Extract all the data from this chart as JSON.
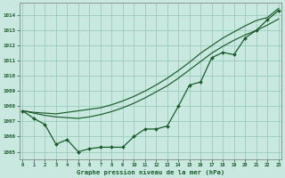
{
  "xlabel": "Graphe pression niveau de la mer (hPa)",
  "bg_color": "#c8e8e0",
  "grid_color": "#99ccbb",
  "line_color": "#1a5c2a",
  "x": [
    0,
    1,
    2,
    3,
    4,
    5,
    6,
    7,
    8,
    9,
    10,
    11,
    12,
    13,
    14,
    15,
    16,
    17,
    18,
    19,
    20,
    21,
    22,
    23
  ],
  "series_main": [
    1007.7,
    1007.2,
    1006.8,
    1005.5,
    1005.8,
    1005.0,
    1005.2,
    1005.3,
    1005.3,
    1005.3,
    1006.0,
    1006.5,
    1006.5,
    1006.7,
    1008.0,
    1009.4,
    1009.6,
    1011.2,
    1011.55,
    1011.4,
    1012.5,
    1013.0,
    1013.7,
    1014.3
  ],
  "series_upper": [
    1007.7,
    1007.6,
    1007.55,
    1007.5,
    1007.6,
    1007.7,
    1007.8,
    1007.9,
    1008.1,
    1008.35,
    1008.65,
    1009.0,
    1009.4,
    1009.85,
    1010.35,
    1010.9,
    1011.5,
    1012.0,
    1012.5,
    1012.9,
    1013.3,
    1013.65,
    1013.85,
    1014.45
  ],
  "series_mid": [
    1007.7,
    1007.55,
    1007.4,
    1007.3,
    1007.25,
    1007.2,
    1007.3,
    1007.45,
    1007.65,
    1007.9,
    1008.2,
    1008.55,
    1008.95,
    1009.35,
    1009.85,
    1010.4,
    1010.95,
    1011.5,
    1011.95,
    1012.35,
    1012.7,
    1013.0,
    1013.35,
    1013.75
  ],
  "ylim": [
    1004.5,
    1014.8
  ],
  "xlim": [
    -0.3,
    23.3
  ],
  "yticks": [
    1005,
    1006,
    1007,
    1008,
    1009,
    1010,
    1011,
    1012,
    1013,
    1014
  ]
}
